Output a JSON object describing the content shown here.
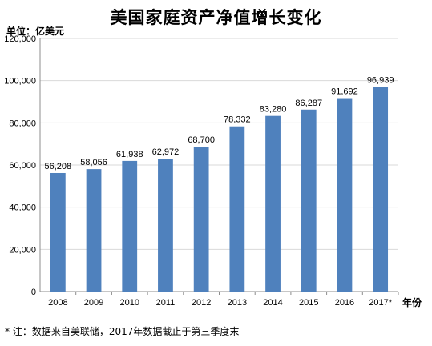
{
  "chart_data": {
    "type": "bar",
    "title": "美国家庭资产净值增长变化",
    "unit_label": "单位：亿美元",
    "xaxis_unit": "年份",
    "footnote": "* 注：数据来自美联储，2017年数据截止于第三季度末",
    "categories": [
      "2008",
      "2009",
      "2010",
      "2011",
      "2012",
      "2013",
      "2014",
      "2015",
      "2016",
      "2017*"
    ],
    "values": [
      56208,
      58056,
      61938,
      62972,
      68700,
      78332,
      83280,
      86287,
      91692,
      96939
    ],
    "data_labels": [
      "56,208",
      "58,056",
      "61,938",
      "62,972",
      "68,700",
      "78,332",
      "83,280",
      "86,287",
      "91,692",
      "96,939"
    ],
    "ylim": [
      0,
      120000
    ],
    "yticks": [
      0,
      20000,
      40000,
      60000,
      80000,
      100000,
      120000
    ],
    "ytick_labels": [
      "0",
      "20,000",
      "40,000",
      "60,000",
      "80,000",
      "100,000",
      "120,000"
    ],
    "grid": true,
    "bar_color": "#4f81bd",
    "grid_color": "#d9d9d9",
    "axis_color": "#8c8c8c"
  }
}
